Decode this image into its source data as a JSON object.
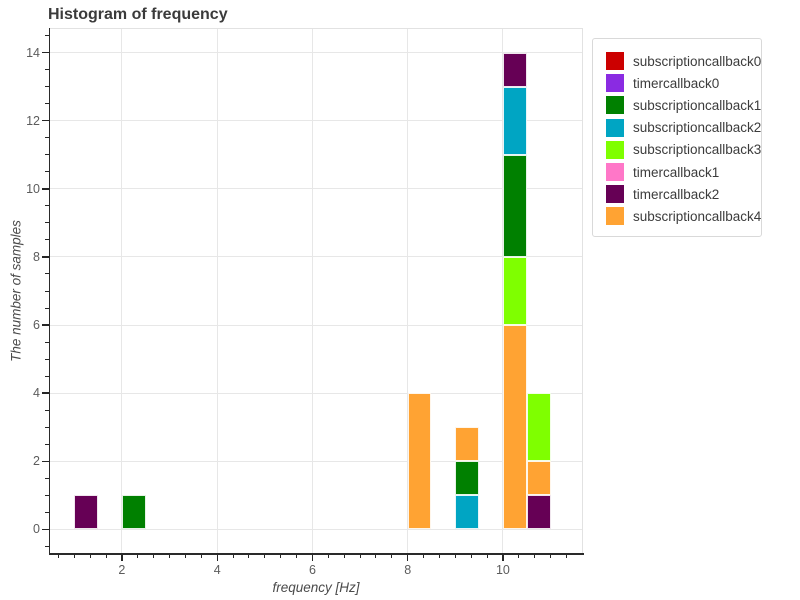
{
  "title": "Histogram of frequency",
  "chart_data": {
    "type": "bar",
    "variant": "stacked-histogram",
    "title": "Histogram of frequency",
    "xlabel": "frequency [Hz]",
    "ylabel": "The number of samples",
    "xlim": [
      0.49,
      11.66
    ],
    "ylim": [
      -0.7,
      14.7
    ],
    "x_major_ticks": [
      2,
      4,
      6,
      8,
      10
    ],
    "y_major_ticks": [
      0,
      2,
      4,
      6,
      8,
      10,
      12,
      14
    ],
    "x_minor_step": 0.3333,
    "y_minor_step": 0.5,
    "grid": true,
    "bin_width": 0.5,
    "legend_position": "upper-right-outside",
    "series": [
      {
        "name": "subscriptioncallback0",
        "color": "#cc0000"
      },
      {
        "name": "timercallback0",
        "color": "#8a2be2"
      },
      {
        "name": "subscriptioncallback1",
        "color": "#008000"
      },
      {
        "name": "subscriptioncallback2",
        "color": "#00a5c3"
      },
      {
        "name": "subscriptioncallback3",
        "color": "#7fff00"
      },
      {
        "name": "timercallback1",
        "color": "#ff77c8"
      },
      {
        "name": "timercallback2",
        "color": "#660055"
      },
      {
        "name": "subscriptioncallback4",
        "color": "#ffa333"
      }
    ],
    "bars": [
      {
        "bin": [
          1.0,
          1.5
        ],
        "segments": [
          {
            "series": "timercallback2",
            "from": 0,
            "to": 1
          }
        ]
      },
      {
        "bin": [
          2.0,
          2.5
        ],
        "segments": [
          {
            "series": "subscriptioncallback1",
            "from": 0,
            "to": 1
          }
        ]
      },
      {
        "bin": [
          8.0,
          8.5
        ],
        "segments": [
          {
            "series": "subscriptioncallback4",
            "from": 0,
            "to": 4
          }
        ]
      },
      {
        "bin": [
          9.0,
          9.5
        ],
        "segments": [
          {
            "series": "subscriptioncallback2",
            "from": 0,
            "to": 1
          },
          {
            "series": "subscriptioncallback1",
            "from": 1,
            "to": 2
          },
          {
            "series": "subscriptioncallback4",
            "from": 2,
            "to": 3
          }
        ]
      },
      {
        "bin": [
          10.0,
          10.5
        ],
        "segments": [
          {
            "series": "subscriptioncallback4",
            "from": 0,
            "to": 6
          },
          {
            "series": "subscriptioncallback3",
            "from": 6,
            "to": 8
          },
          {
            "series": "subscriptioncallback1",
            "from": 8,
            "to": 11
          },
          {
            "series": "subscriptioncallback2",
            "from": 11,
            "to": 13
          },
          {
            "series": "timercallback2",
            "from": 13,
            "to": 14
          }
        ]
      },
      {
        "bin": [
          10.5,
          11.0
        ],
        "segments": [
          {
            "series": "timercallback2",
            "from": 0,
            "to": 1
          },
          {
            "series": "subscriptioncallback4",
            "from": 1,
            "to": 2
          },
          {
            "series": "subscriptioncallback3",
            "from": 2,
            "to": 4
          }
        ]
      }
    ],
    "legend_items": [
      "subscriptioncallback0",
      "timercallback0",
      "subscriptioncallback1",
      "subscriptioncallback2",
      "subscriptioncallback3",
      "timercallback1",
      "timercallback2",
      "subscriptioncallback4"
    ]
  }
}
